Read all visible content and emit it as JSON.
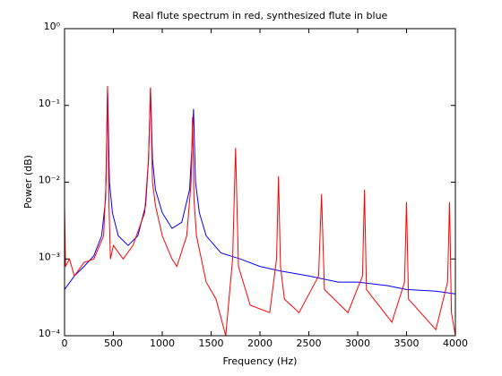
{
  "chart_data": {
    "type": "line",
    "title": "Real flute spectrum in red, synthesized flute in blue",
    "xlabel": "Frequency (Hz)",
    "ylabel": "Power (dB)",
    "xlim": [
      0,
      4000
    ],
    "xticks": [
      0,
      500,
      1000,
      1500,
      2000,
      2500,
      3000,
      3500,
      4000
    ],
    "ylim": [
      0.0001,
      1
    ],
    "yscale": "log",
    "yticks": [
      {
        "value": 0.0001,
        "label": "10⁻⁴"
      },
      {
        "value": 0.001,
        "label": "10⁻³"
      },
      {
        "value": 0.01,
        "label": "10⁻²"
      },
      {
        "value": 0.1,
        "label": "10⁻¹"
      },
      {
        "value": 1,
        "label": "10⁰"
      }
    ],
    "series": [
      {
        "color": "#0000ff",
        "x": [
          0,
          100,
          200,
          300,
          380,
          420,
          440,
          460,
          490,
          550,
          650,
          750,
          830,
          860,
          880,
          900,
          930,
          1000,
          1100,
          1200,
          1280,
          1305,
          1320,
          1340,
          1380,
          1450,
          1600,
          1800,
          2000,
          2200,
          2500,
          2800,
          3000,
          3300,
          3500,
          3800,
          4000
        ],
        "values": [
          0.0004,
          0.0006,
          0.0008,
          0.0011,
          0.002,
          0.006,
          0.17,
          0.01,
          0.004,
          0.002,
          0.0015,
          0.002,
          0.005,
          0.02,
          0.17,
          0.02,
          0.008,
          0.004,
          0.0025,
          0.003,
          0.008,
          0.03,
          0.09,
          0.01,
          0.004,
          0.002,
          0.0012,
          0.001,
          0.0008,
          0.0007,
          0.0006,
          0.0005,
          0.0005,
          0.00045,
          0.0004,
          0.00038,
          0.00035
        ]
      },
      {
        "color": "#ff0000",
        "x": [
          0,
          10,
          50,
          100,
          200,
          300,
          400,
          425,
          440,
          455,
          470,
          500,
          600,
          700,
          820,
          860,
          880,
          900,
          930,
          1000,
          1100,
          1150,
          1250,
          1295,
          1310,
          1325,
          1350,
          1450,
          1550,
          1650,
          1720,
          1750,
          1780,
          1900,
          2100,
          2170,
          2190,
          2210,
          2250,
          2400,
          2600,
          2630,
          2660,
          2900,
          3050,
          3070,
          3090,
          3350,
          3480,
          3500,
          3520,
          3800,
          3920,
          3940,
          3960,
          4000
        ],
        "values": [
          0.005,
          0.0008,
          0.001,
          0.0006,
          0.0009,
          0.001,
          0.002,
          0.01,
          0.18,
          0.005,
          0.001,
          0.0015,
          0.001,
          0.0015,
          0.004,
          0.02,
          0.17,
          0.01,
          0.005,
          0.002,
          0.001,
          0.0008,
          0.002,
          0.01,
          0.07,
          0.006,
          0.002,
          0.0005,
          0.0003,
          0.0001,
          0.001,
          0.028,
          0.0008,
          0.00025,
          0.0002,
          0.001,
          0.012,
          0.0008,
          0.0003,
          0.0002,
          0.0006,
          0.007,
          0.0004,
          0.0002,
          0.0006,
          0.008,
          0.0004,
          0.00015,
          0.0005,
          0.0055,
          0.0003,
          0.00012,
          0.0005,
          0.0055,
          0.0002,
          0.0001
        ]
      }
    ]
  }
}
